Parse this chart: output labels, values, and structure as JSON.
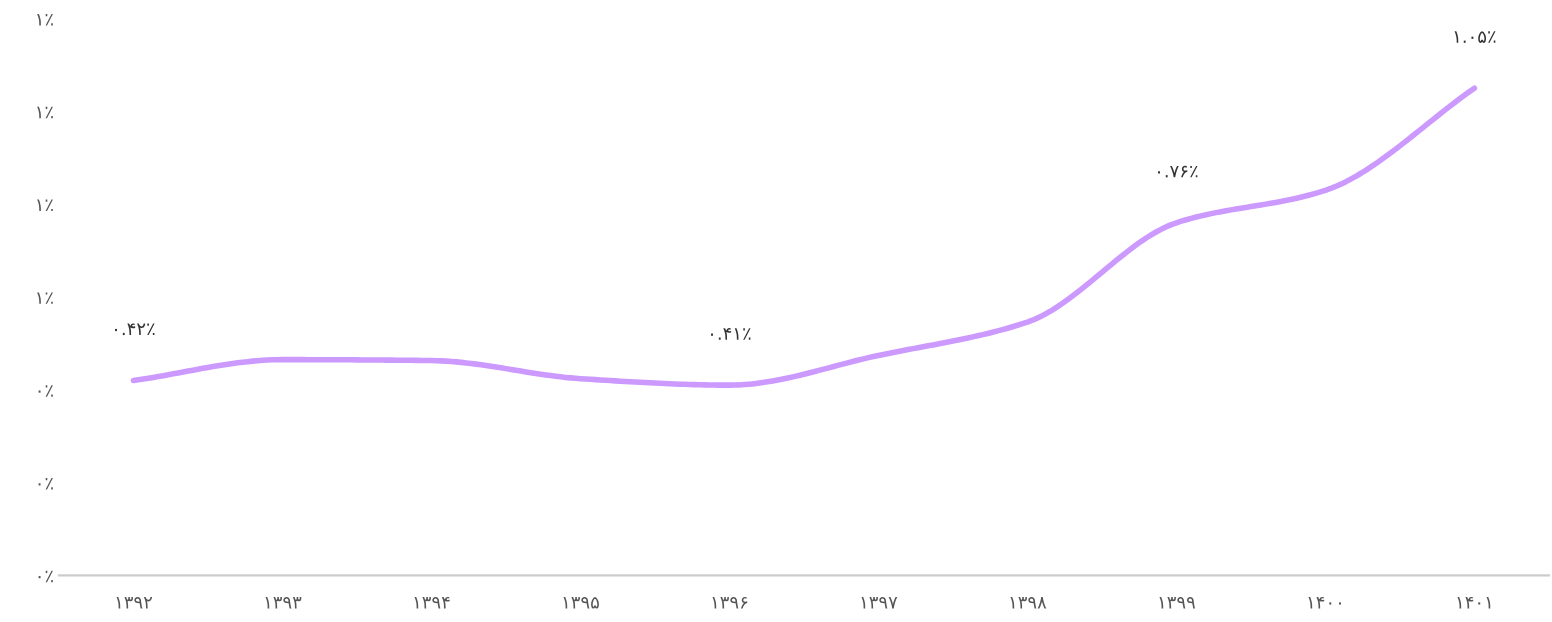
{
  "chart_data": {
    "type": "line",
    "categories": [
      "۱۳۹۲",
      "۱۳۹۳",
      "۱۳۹۴",
      "۱۳۹۵",
      "۱۳۹۶",
      "۱۳۹۷",
      "۱۳۹۸",
      "۱۳۹۹",
      "۱۴۰۰",
      "۱۴۰۱"
    ],
    "series": [
      {
        "color": "#cc99ff",
        "values": [
          0.42,
          0.465,
          0.463,
          0.424,
          0.41,
          0.474,
          0.546,
          0.76,
          0.83,
          1.05
        ],
        "value_labels": [
          "۰.۴۲٪",
          null,
          null,
          null,
          "۰.۴۱٪",
          null,
          null,
          "۰.۷۶٪",
          null,
          "۱.۰۵٪"
        ]
      }
    ],
    "ylim": [
      0,
      1.2
    ],
    "yticks": [
      {
        "value": 0,
        "label": "۰٪"
      },
      {
        "value": 0.2,
        "label": "۰٪"
      },
      {
        "value": 0.4,
        "label": "۰٪"
      },
      {
        "value": 0.6,
        "label": "۱٪"
      },
      {
        "value": 0.8,
        "label": "۱٪"
      },
      {
        "value": 1.0,
        "label": "۱٪"
      },
      {
        "value": 1.2,
        "label": "۱٪"
      }
    ],
    "grid": false,
    "legend": false,
    "marker": "none",
    "line_style": "solid"
  }
}
